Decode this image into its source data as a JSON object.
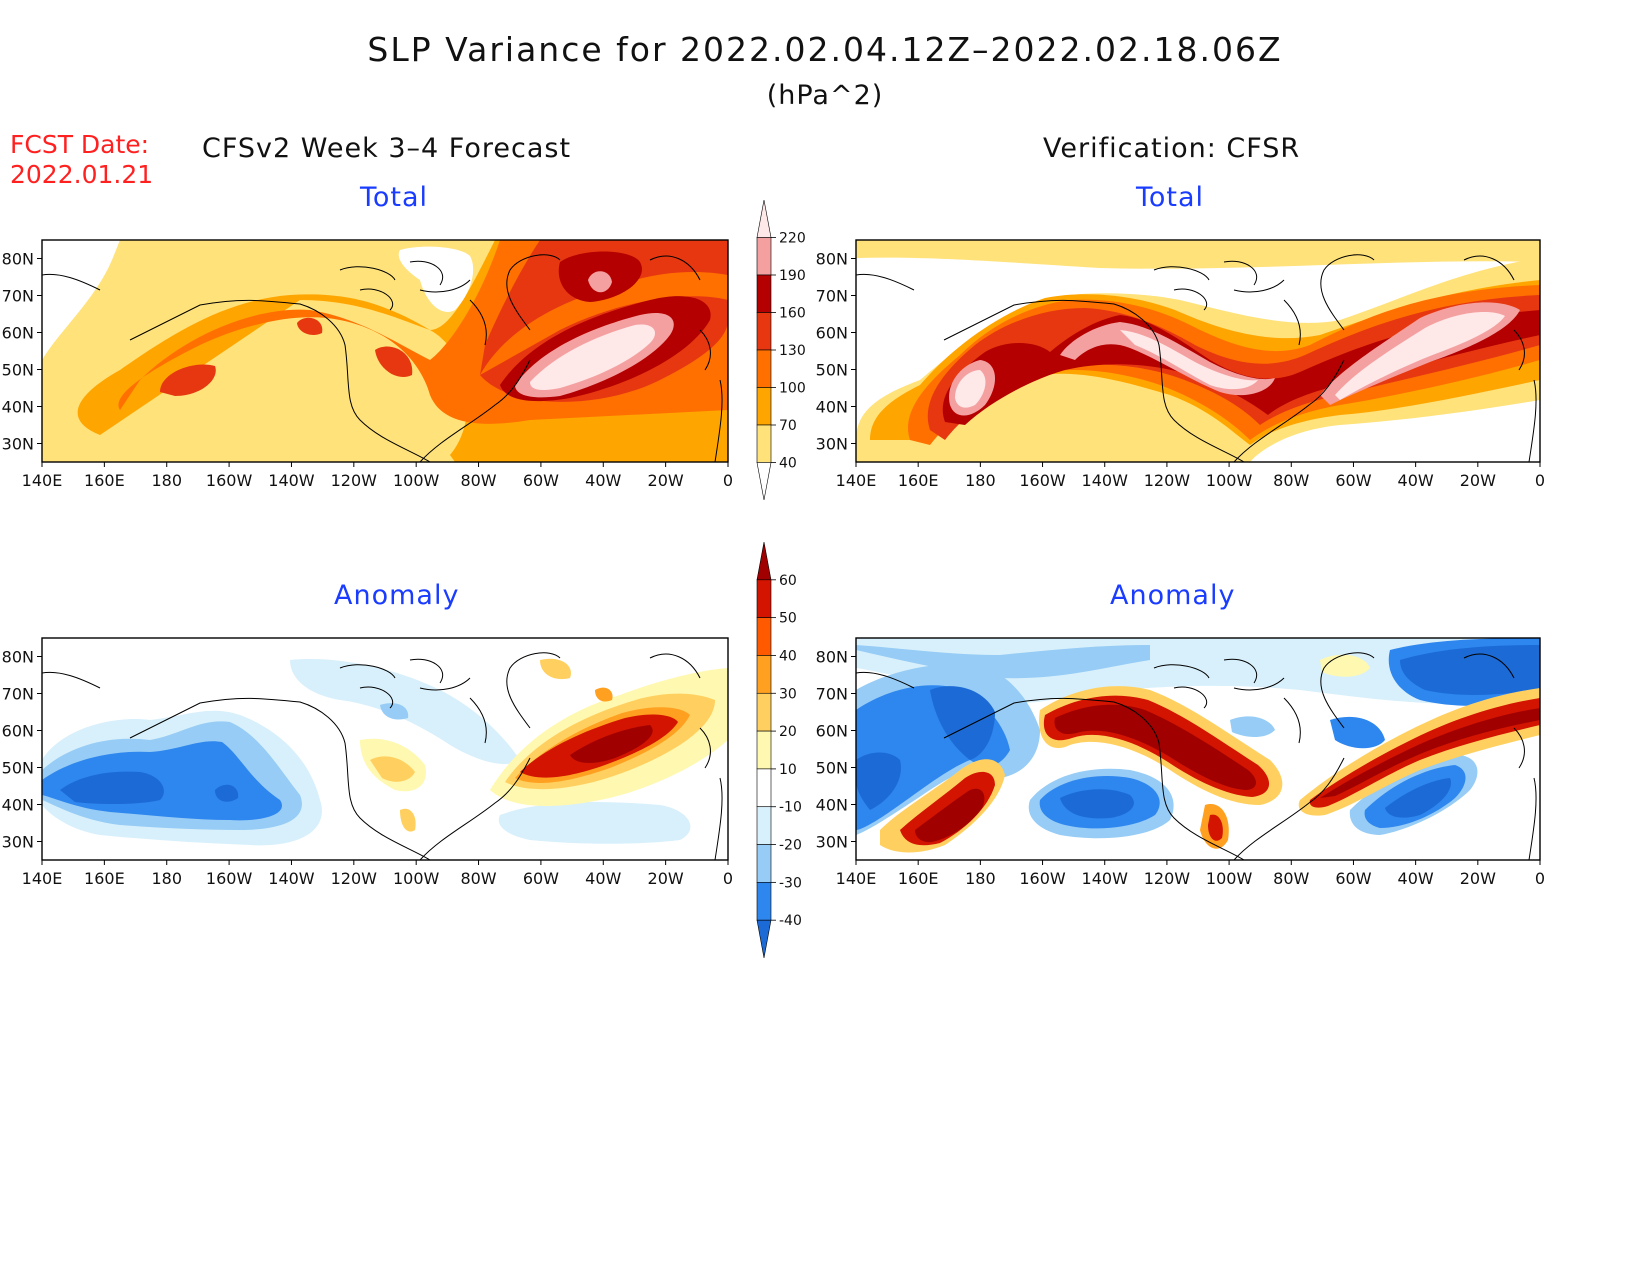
{
  "header": {
    "title": "SLP Variance for 2022.02.04.12Z–2022.02.18.06Z",
    "units": "(hPa^2)",
    "fcst_label": "FCST Date:",
    "fcst_date": "2022.01.21"
  },
  "columns": {
    "left": "CFSv2 Week 3–4 Forecast",
    "right": "Verification: CFSR"
  },
  "panels": {
    "total": "Total",
    "anomaly": "Anomaly"
  },
  "axes": {
    "lat_labels": [
      "30N",
      "40N",
      "50N",
      "60N",
      "70N",
      "80N"
    ],
    "lon_labels": [
      "140E",
      "160E",
      "180",
      "160W",
      "140W",
      "120W",
      "100W",
      "80W",
      "60W",
      "40W",
      "20W",
      "0"
    ]
  },
  "legend_total": {
    "levels": [
      "40",
      "70",
      "100",
      "130",
      "160",
      "190",
      "220"
    ],
    "colors": [
      "#ffffff",
      "#ffe27a",
      "#ffa500",
      "#ff7000",
      "#e73710",
      "#b40000",
      "#f4a0a0",
      "#ffe8e8"
    ]
  },
  "legend_anomaly": {
    "levels": [
      "-40",
      "-30",
      "-20",
      "-10",
      "10",
      "20",
      "30",
      "40",
      "50",
      "60"
    ],
    "colors": [
      "#1c6ad6",
      "#2e86ef",
      "#96ccf5",
      "#d8f0fb",
      "#ffffff",
      "#fff8b0",
      "#ffd060",
      "#ffa020",
      "#ff5a00",
      "#d21400",
      "#a00000"
    ]
  }
}
